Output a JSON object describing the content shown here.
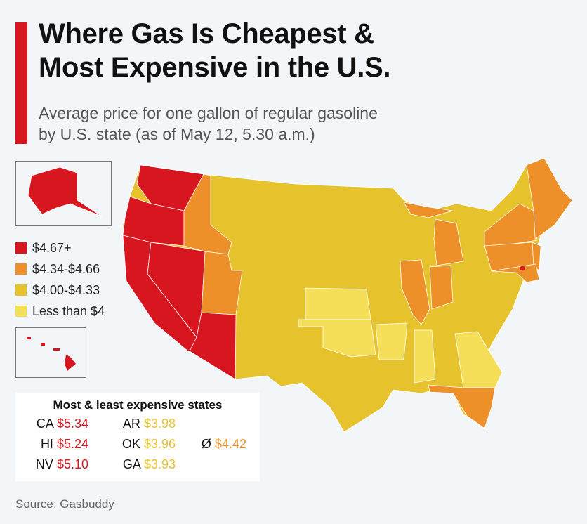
{
  "title_line1": "Where Gas Is Cheapest &",
  "title_line2": "Most Expensive in the U.S.",
  "subtitle_line1": "Average price for one gallon of regular gasoline",
  "subtitle_line2": "by U.S. state (as of May 12, 5.30 a.m.)",
  "colors": {
    "high": "#d7161f",
    "upper": "#ee9029",
    "mid": "#e6c22c",
    "low": "#f6df58"
  },
  "legend": [
    {
      "label": "$4.67+",
      "level": "high"
    },
    {
      "label": "$4.34-$4.66",
      "level": "upper"
    },
    {
      "label": "$4.00-$4.33",
      "level": "mid"
    },
    {
      "label": "Less than $4",
      "level": "low"
    }
  ],
  "state_levels": {
    "WA": "high",
    "OR": "high",
    "CA": "high",
    "NV": "high",
    "AZ": "high",
    "AK": "high",
    "HI": "high",
    "DC": "high",
    "ID": "upper",
    "UT": "upper",
    "IL": "upper",
    "IN": "upper",
    "MI": "upper",
    "NY": "upper",
    "PA": "upper",
    "NJ": "upper",
    "MD": "upper",
    "DE": "upper",
    "New England": "upper",
    "FL": "upper",
    "KS": "low",
    "OK": "low",
    "AR": "low",
    "MS": "low",
    "GA": "low"
  },
  "table": {
    "title": "Most & least expensive states",
    "most": [
      {
        "state": "CA",
        "price": "$5.34"
      },
      {
        "state": "HI",
        "price": "$5.24"
      },
      {
        "state": "NV",
        "price": "$5.10"
      }
    ],
    "least": [
      {
        "state": "AR",
        "price": "$3.98"
      },
      {
        "state": "OK",
        "price": "$3.96"
      },
      {
        "state": "GA",
        "price": "$3.93"
      }
    ],
    "avg_symbol": "Ø",
    "avg_price": "$4.42"
  },
  "source": "Source: Gasbuddy"
}
